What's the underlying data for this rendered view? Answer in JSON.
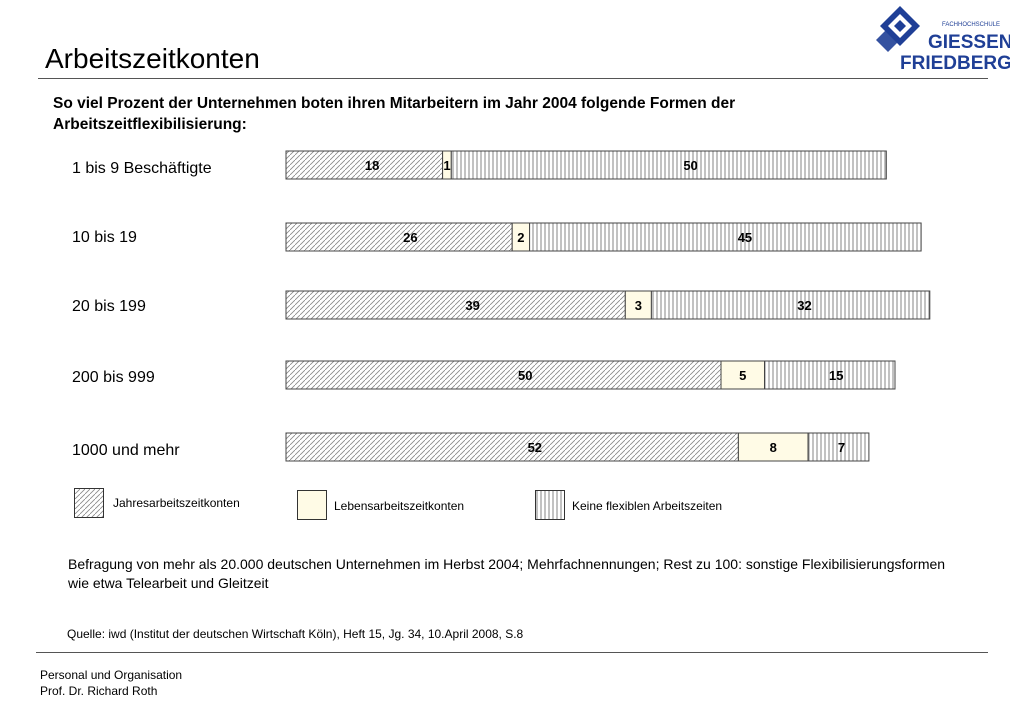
{
  "header": {
    "title": "Arbeitszeitkonten",
    "logo": {
      "small_text": "FACHHOCHSCHULE",
      "line1": "GIESSEN",
      "line2": "FRIEDBERG",
      "icon": "diamond-logo-icon",
      "brand_color": "#1f3f96"
    }
  },
  "headline": "So viel Prozent der Unternehmen boten ihren Mitarbeitern im Jahr 2004 folgende Formen der Arbeitszeitflexibilisierung:",
  "chart_data": {
    "type": "bar",
    "orientation": "horizontal",
    "stacked": true,
    "categories": [
      "1 bis 9 Beschäftigte",
      "10 bis 19",
      "20 bis 199",
      "200 bis 999",
      "1000 und mehr"
    ],
    "series": [
      {
        "name": "Jahresarbeitszeitkonten",
        "values": [
          18,
          26,
          39,
          50,
          52
        ],
        "pattern": "diagonal-hatch"
      },
      {
        "name": "Lebensarbeitszeitkonten",
        "values": [
          1,
          2,
          3,
          5,
          8
        ],
        "color": "#fffbe6"
      },
      {
        "name": "Keine flexiblen Arbeitszeiten",
        "values": [
          50,
          45,
          32,
          15,
          7
        ],
        "pattern": "vertical-hatch"
      }
    ],
    "title": "",
    "xlabel": "",
    "ylabel": "",
    "grid": false,
    "legend_position": "bottom"
  },
  "note": "Befragung von mehr als 20.000 deutschen Unternehmen im Herbst 2004; Mehrfachnennungen; Rest zu 100: sonstige Flexibilisierungsformen wie etwa Telearbeit und Gleitzeit",
  "source": "Quelle: iwd (Institut der deutschen Wirtschaft Köln), Heft 15, Jg. 34, 10.April 2008, S.8",
  "footer": {
    "line1": "Personal und Organisation",
    "line2": "Prof. Dr. Richard Roth"
  }
}
